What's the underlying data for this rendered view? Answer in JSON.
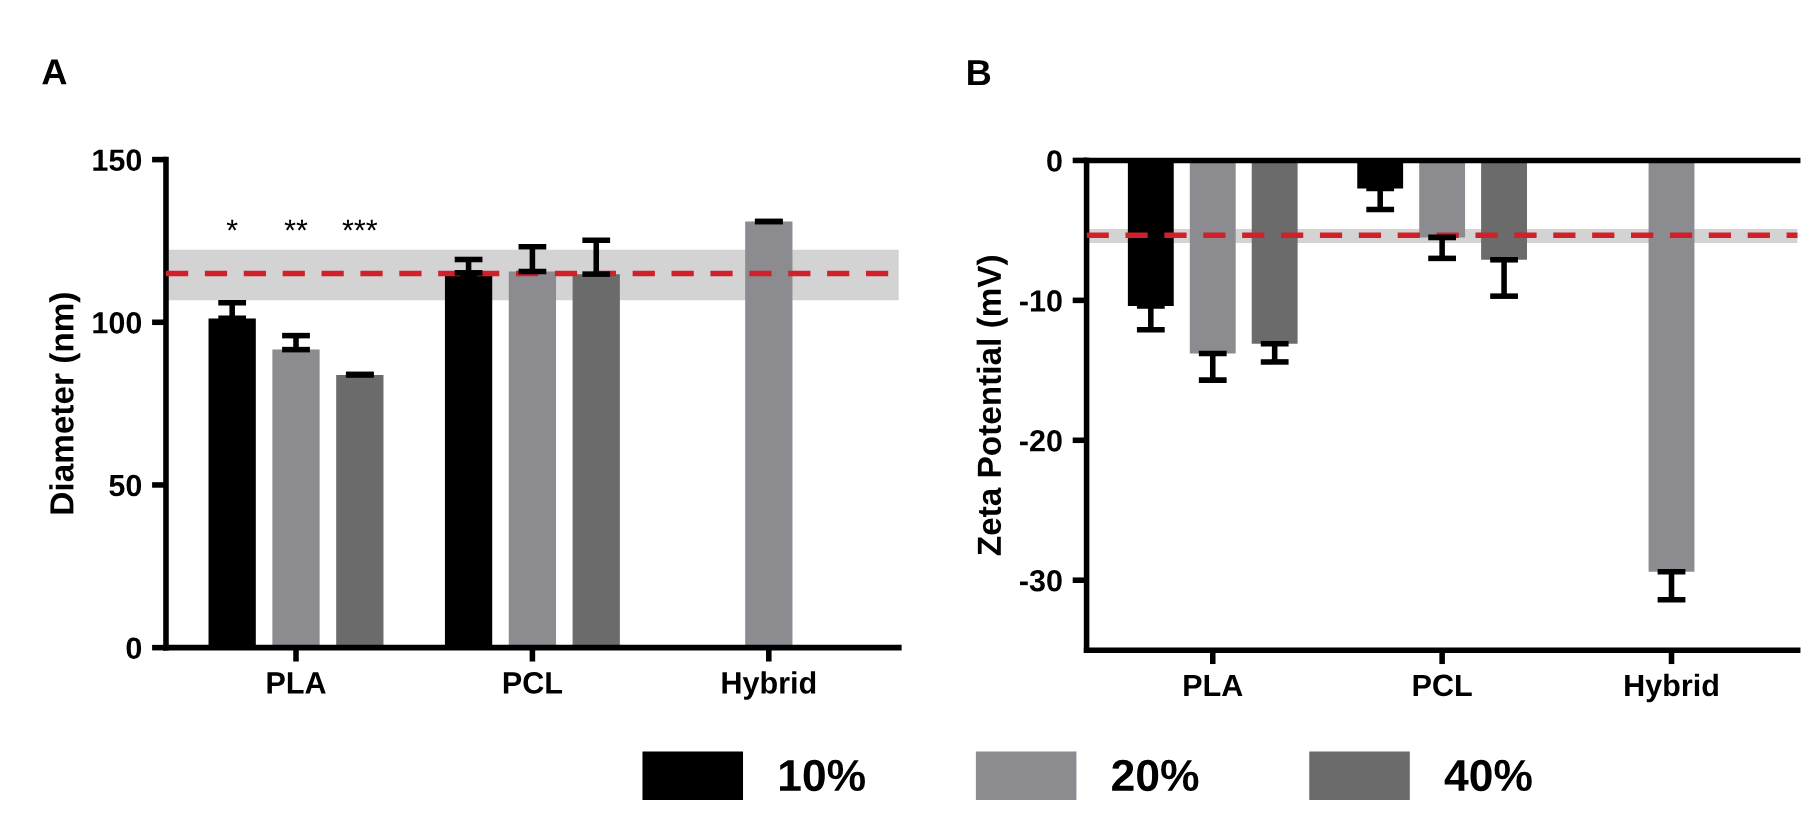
{
  "chart_data": [
    {
      "type": "bar",
      "title": "A",
      "ylabel": "Diameter (nm)",
      "categories": [
        "PLA",
        "PCL",
        "Hybrid"
      ],
      "ylim": [
        0,
        150
      ],
      "yticks": [
        0,
        50,
        100,
        150
      ],
      "grid": false,
      "legend": "bottom",
      "series": [
        {
          "name": "10%",
          "color": "#000000",
          "values": [
            101.2,
            115.2,
            null
          ],
          "errors": [
            [
              101.2,
              106
            ],
            [
              115.2,
              119.3
            ],
            null
          ]
        },
        {
          "name": "20%",
          "color": "#8c8b90",
          "values": [
            91.6,
            115.6,
            131
          ],
          "errors": [
            [
              91.6,
              95.9
            ],
            [
              115.6,
              123.2
            ],
            [
              131,
              131
            ]
          ]
        },
        {
          "name": "40%",
          "color": "#6b6b6b",
          "values": [
            83.8,
            114.8,
            null
          ],
          "errors": [
            [
              83.8,
              84
            ],
            [
              114.8,
              125.2
            ],
            null
          ]
        }
      ],
      "ref_lines": [
        {
          "axis": "y",
          "value": 115,
          "color": "#d0202a",
          "line_style": "dashed"
        }
      ],
      "bands": [
        {
          "axis": "y",
          "from": 106.8,
          "to": 122.3,
          "color": "#d3d3d3"
        }
      ],
      "annotations": [
        "*",
        "**",
        "***"
      ]
    },
    {
      "type": "bar",
      "title": "B",
      "ylabel": "Zeta Potential (mV)",
      "categories": [
        "PLA",
        "PCL",
        "Hybrid"
      ],
      "ylim": [
        -35,
        0
      ],
      "yticks": [
        {
          "value": -30,
          "label": "-30"
        },
        {
          "value": -20,
          "label": "-20"
        },
        {
          "value": -10,
          "label": "-10"
        },
        0
      ],
      "grid": false,
      "series": [
        {
          "color": "#000000",
          "values": [
            -10.4,
            -2.0,
            null
          ],
          "errors": [
            [
              -12.1,
              -10.4
            ],
            [
              -3.5,
              -2.0
            ],
            null
          ]
        },
        {
          "color": "#8c8b90",
          "values": [
            -13.8,
            -5.5,
            -29.4
          ],
          "errors": [
            [
              -15.7,
              -13.8
            ],
            [
              -7.0,
              -5.5
            ],
            [
              -31.4,
              -29.4
            ]
          ]
        },
        {
          "color": "#6b6b6b",
          "values": [
            -13.1,
            -7.1,
            null
          ],
          "errors": [
            [
              -14.4,
              -13.1
            ],
            [
              -9.7,
              -7.1
            ],
            null
          ]
        }
      ],
      "ref_lines": [
        {
          "axis": "y",
          "value": -5.35,
          "color": "#d0202a",
          "line_style": "dashed"
        }
      ],
      "bands": [
        {
          "axis": "y",
          "from": -5.9,
          "to": -4.9,
          "color": "#d3d3d3"
        }
      ]
    }
  ]
}
